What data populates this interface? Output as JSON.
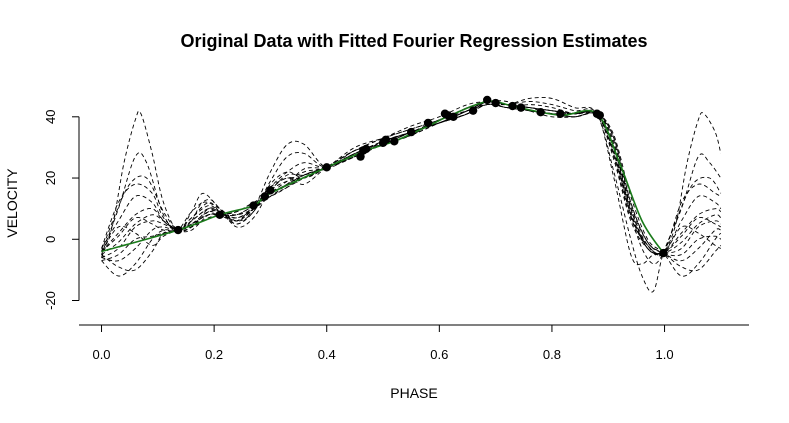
{
  "chart_data": {
    "type": "line",
    "title": "Original Data with Fitted Fourier Regression Estimates",
    "xlabel": "PHASE",
    "ylabel": "VELOCITY",
    "xlim": [
      -0.04,
      1.15
    ],
    "ylim": [
      -28,
      53
    ],
    "x_ticks": [
      0.0,
      0.2,
      0.4,
      0.6,
      0.8,
      1.0
    ],
    "x_tick_labels": [
      "0.0",
      "0.2",
      "0.4",
      "0.6",
      "0.8",
      "1.0"
    ],
    "y_ticks": [
      -20,
      0,
      20,
      40
    ],
    "y_tick_labels": [
      "-20",
      "0",
      "20",
      "40"
    ],
    "grid": false,
    "legend": "none",
    "colors": {
      "data": "#000000",
      "fits": "#000000",
      "fitted_mean": "#1a7a1a"
    },
    "observations": {
      "x": [
        0.136,
        0.21,
        0.27,
        0.29,
        0.3,
        0.4,
        0.46,
        0.465,
        0.47,
        0.5,
        0.505,
        0.52,
        0.55,
        0.58,
        0.61,
        0.615,
        0.625,
        0.66,
        0.685,
        0.7,
        0.73,
        0.745,
        0.78,
        0.815,
        0.88,
        0.885,
        0.998
      ],
      "y": [
        3,
        8,
        11,
        14,
        16,
        23.5,
        27,
        29,
        29.5,
        31.5,
        32.5,
        32,
        35,
        38,
        41,
        40.5,
        40,
        42,
        45.5,
        44.5,
        43.5,
        43,
        41.5,
        41,
        41,
        40.5,
        -4.5
      ]
    },
    "fitted_mean": {
      "x": [
        0.0,
        0.136,
        0.21,
        0.27,
        0.3,
        0.4,
        0.47,
        0.52,
        0.58,
        0.62,
        0.685,
        0.73,
        0.78,
        0.82,
        0.88,
        0.92,
        0.96,
        0.998
      ],
      "y": [
        -4,
        3,
        8,
        11,
        15,
        23.5,
        29,
        32,
        37,
        40.5,
        45,
        43.5,
        41.5,
        40.5,
        41,
        25,
        6,
        -4.5
      ]
    },
    "fourier_fits": [
      {
        "x": [
          0.0,
          0.02,
          0.04,
          0.06,
          0.07,
          0.09,
          0.11,
          0.136,
          0.16,
          0.18,
          0.21,
          0.24,
          0.27,
          0.3,
          0.33,
          0.36,
          0.4,
          0.45,
          0.5,
          0.55,
          0.6,
          0.65,
          0.685,
          0.72,
          0.76,
          0.8,
          0.84,
          0.88,
          0.91,
          0.94,
          0.96,
          0.98,
          0.998,
          1.02,
          1.04,
          1.06,
          1.07,
          1.09,
          1.1
        ],
        "y": [
          -6,
          5,
          25,
          39,
          41,
          28,
          12,
          3,
          9,
          15,
          10,
          5,
          10,
          22,
          31,
          31,
          23.5,
          28,
          31,
          35,
          38,
          41,
          45,
          44,
          46,
          46,
          43,
          41,
          20,
          -5,
          -8,
          -5,
          -4.5,
          5,
          25,
          39,
          41,
          35,
          28
        ]
      },
      {
        "x": [
          0.0,
          0.03,
          0.06,
          0.08,
          0.11,
          0.136,
          0.16,
          0.18,
          0.21,
          0.24,
          0.27,
          0.3,
          0.33,
          0.36,
          0.4,
          0.45,
          0.5,
          0.55,
          0.6,
          0.65,
          0.685,
          0.72,
          0.76,
          0.8,
          0.84,
          0.88,
          0.91,
          0.94,
          0.96,
          0.98,
          0.998,
          1.03,
          1.06,
          1.08,
          1.1
        ],
        "y": [
          -5,
          10,
          27,
          25,
          8,
          3,
          6,
          12,
          10,
          6,
          9,
          19,
          27,
          28,
          23.5,
          29,
          31,
          34,
          39,
          42,
          44,
          44,
          45,
          44,
          42,
          41,
          22,
          0,
          -12,
          -17,
          -4.5,
          10,
          27,
          25,
          20
        ]
      },
      {
        "x": [
          0.0,
          0.02,
          0.05,
          0.08,
          0.11,
          0.136,
          0.16,
          0.19,
          0.21,
          0.24,
          0.27,
          0.3,
          0.33,
          0.36,
          0.4,
          0.45,
          0.5,
          0.55,
          0.6,
          0.65,
          0.685,
          0.72,
          0.76,
          0.8,
          0.84,
          0.88,
          0.91,
          0.94,
          0.96,
          0.98,
          0.998,
          1.02,
          1.05,
          1.08,
          1.1
        ],
        "y": [
          -4,
          6,
          18,
          20,
          9,
          3,
          4,
          10,
          9,
          6,
          10,
          17,
          22,
          25,
          23.5,
          27,
          32,
          35,
          38,
          42,
          45,
          43,
          44,
          43,
          41,
          40.5,
          28,
          8,
          -3,
          -8,
          -4.5,
          6,
          18,
          20,
          15
        ]
      },
      {
        "x": [
          0.0,
          0.03,
          0.06,
          0.09,
          0.11,
          0.136,
          0.16,
          0.19,
          0.21,
          0.24,
          0.27,
          0.3,
          0.33,
          0.36,
          0.4,
          0.45,
          0.5,
          0.55,
          0.6,
          0.65,
          0.685,
          0.72,
          0.76,
          0.8,
          0.84,
          0.88,
          0.91,
          0.94,
          0.97,
          0.998,
          1.03,
          1.06,
          1.09,
          1.1
        ],
        "y": [
          -3,
          12,
          18,
          15,
          7,
          3,
          3,
          8,
          8,
          7,
          10,
          15,
          19,
          22,
          23.5,
          28,
          31,
          35,
          38,
          41,
          45,
          44,
          43,
          42,
          41,
          41,
          30,
          10,
          -2,
          -4.5,
          12,
          18,
          15,
          14
        ]
      },
      {
        "x": [
          0.0,
          0.03,
          0.06,
          0.09,
          0.11,
          0.136,
          0.16,
          0.19,
          0.21,
          0.24,
          0.27,
          0.3,
          0.33,
          0.36,
          0.4,
          0.45,
          0.5,
          0.55,
          0.6,
          0.65,
          0.685,
          0.72,
          0.76,
          0.8,
          0.84,
          0.88,
          0.91,
          0.94,
          0.97,
          0.998,
          1.03,
          1.06,
          1.09,
          1.1
        ],
        "y": [
          -7,
          -12,
          -8,
          0,
          3,
          3,
          7,
          12,
          9,
          5,
          9,
          18,
          22,
          20,
          23.5,
          30,
          33,
          36,
          39,
          43,
          45,
          44,
          42,
          41,
          40,
          41,
          34,
          14,
          0,
          -4.5,
          -12,
          -8,
          0,
          2
        ]
      },
      {
        "x": [
          0.0,
          0.03,
          0.06,
          0.09,
          0.11,
          0.136,
          0.16,
          0.19,
          0.21,
          0.24,
          0.27,
          0.3,
          0.33,
          0.36,
          0.4,
          0.45,
          0.5,
          0.55,
          0.6,
          0.65,
          0.685,
          0.72,
          0.76,
          0.8,
          0.84,
          0.88,
          0.91,
          0.94,
          0.97,
          0.998,
          1.03,
          1.06,
          1.09,
          1.1
        ],
        "y": [
          -5,
          -9,
          -10,
          -4,
          2,
          3,
          9,
          13,
          10,
          4,
          7,
          16,
          20,
          18,
          23.5,
          29,
          33,
          37,
          40,
          44,
          45,
          45,
          42,
          40,
          40,
          41,
          33,
          12,
          -1,
          -4.5,
          -9,
          -10,
          -4,
          -2
        ]
      },
      {
        "x": [
          0.0,
          0.03,
          0.06,
          0.09,
          0.11,
          0.136,
          0.16,
          0.19,
          0.21,
          0.24,
          0.27,
          0.3,
          0.33,
          0.36,
          0.4,
          0.45,
          0.5,
          0.55,
          0.6,
          0.65,
          0.685,
          0.72,
          0.76,
          0.8,
          0.84,
          0.88,
          0.91,
          0.94,
          0.97,
          0.998,
          1.03,
          1.06,
          1.09,
          1.1
        ],
        "y": [
          -4,
          2,
          8,
          10,
          6,
          3,
          5,
          9,
          8,
          8,
          11,
          14,
          17,
          20,
          23.5,
          27,
          32,
          35,
          38,
          42,
          44,
          43,
          42,
          41,
          41,
          41,
          29,
          8,
          -3,
          -4.5,
          2,
          8,
          10,
          9
        ]
      },
      {
        "x": [
          0.0,
          0.03,
          0.06,
          0.09,
          0.11,
          0.136,
          0.16,
          0.19,
          0.21,
          0.24,
          0.27,
          0.3,
          0.33,
          0.36,
          0.4,
          0.45,
          0.5,
          0.55,
          0.6,
          0.65,
          0.685,
          0.72,
          0.76,
          0.8,
          0.84,
          0.88,
          0.91,
          0.94,
          0.97,
          0.998,
          1.03,
          1.06,
          1.09,
          1.1
        ],
        "y": [
          -6,
          -3,
          4,
          6,
          5,
          3,
          6,
          10,
          8,
          6,
          11,
          17,
          20,
          20,
          23.5,
          29,
          31,
          34,
          38,
          42,
          45,
          44,
          43,
          42,
          41,
          41,
          31,
          10,
          -3,
          -4.5,
          -3,
          4,
          6,
          5
        ]
      },
      {
        "x": [
          0.0,
          0.03,
          0.06,
          0.09,
          0.11,
          0.136,
          0.16,
          0.19,
          0.21,
          0.24,
          0.27,
          0.3,
          0.33,
          0.36,
          0.4,
          0.45,
          0.5,
          0.55,
          0.6,
          0.65,
          0.685,
          0.72,
          0.76,
          0.8,
          0.84,
          0.88,
          0.91,
          0.94,
          0.97,
          0.998,
          1.03,
          1.06,
          1.09,
          1.1
        ],
        "y": [
          -3,
          6,
          14,
          12,
          6,
          3,
          4,
          9,
          9,
          8,
          10,
          14,
          18,
          23,
          23.5,
          27,
          31,
          35,
          38,
          41,
          45,
          44,
          43,
          42,
          41,
          41,
          27,
          7,
          -2,
          -4.5,
          6,
          14,
          12,
          10
        ]
      },
      {
        "x": [
          0.0,
          0.03,
          0.06,
          0.09,
          0.11,
          0.136,
          0.16,
          0.19,
          0.21,
          0.24,
          0.27,
          0.3,
          0.33,
          0.36,
          0.4,
          0.45,
          0.5,
          0.55,
          0.6,
          0.65,
          0.685,
          0.72,
          0.76,
          0.8,
          0.84,
          0.88,
          0.91,
          0.94,
          0.97,
          0.998,
          1.03,
          1.06,
          1.09,
          1.1
        ],
        "y": [
          -5,
          -1,
          5,
          8,
          6,
          3,
          5,
          8,
          8,
          8,
          11,
          15,
          18,
          21,
          23.5,
          28,
          32,
          35,
          38,
          42,
          45,
          44,
          43,
          42,
          41,
          41,
          30,
          9,
          -3,
          -4.5,
          -1,
          5,
          8,
          7
        ]
      },
      {
        "x": [
          0.0,
          0.03,
          0.06,
          0.09,
          0.11,
          0.136,
          0.16,
          0.19,
          0.21,
          0.24,
          0.27,
          0.3,
          0.33,
          0.36,
          0.4,
          0.45,
          0.5,
          0.55,
          0.6,
          0.65,
          0.685,
          0.72,
          0.76,
          0.8,
          0.84,
          0.88,
          0.91,
          0.94,
          0.97,
          0.998,
          1.03,
          1.06,
          1.09,
          1.1
        ],
        "y": [
          -6,
          -7,
          -3,
          3,
          4,
          3,
          7,
          11,
          9,
          6,
          10,
          16,
          19,
          20,
          23.5,
          29,
          33,
          36,
          39,
          43,
          45,
          44,
          42,
          41,
          40,
          41,
          32,
          11,
          -1,
          -4.5,
          -7,
          -3,
          3,
          3
        ]
      },
      {
        "x": [
          0.0,
          0.03,
          0.06,
          0.09,
          0.11,
          0.136,
          0.16,
          0.19,
          0.21,
          0.24,
          0.27,
          0.3,
          0.33,
          0.36,
          0.4,
          0.45,
          0.5,
          0.55,
          0.6,
          0.65,
          0.685,
          0.72,
          0.76,
          0.8,
          0.84,
          0.88,
          0.91,
          0.94,
          0.97,
          0.998,
          1.03,
          1.06,
          1.09,
          1.1
        ],
        "y": [
          -4,
          4,
          2,
          -2,
          1,
          3,
          4,
          7,
          8,
          9,
          12,
          15,
          18,
          21,
          23.5,
          27,
          31,
          35,
          38,
          41,
          44,
          43,
          42,
          41,
          41,
          41,
          28,
          8,
          -2,
          -4.5,
          4,
          2,
          -2,
          -3
        ]
      },
      {
        "x": [
          0.0,
          0.03,
          0.06,
          0.09,
          0.11,
          0.136,
          0.16,
          0.19,
          0.21,
          0.24,
          0.27,
          0.3,
          0.33,
          0.36,
          0.4,
          0.45,
          0.5,
          0.55,
          0.6,
          0.65,
          0.685,
          0.72,
          0.76,
          0.8,
          0.84,
          0.88,
          0.91,
          0.94,
          0.97,
          0.998,
          1.03,
          1.06,
          1.09,
          1.1
        ],
        "y": [
          -4,
          1,
          7,
          5,
          3,
          3,
          5,
          8,
          8,
          9,
          12,
          14,
          17,
          21,
          23.5,
          27,
          31,
          34,
          38,
          41,
          44,
          43,
          42,
          41,
          41,
          41,
          26,
          6,
          -3,
          -4.5,
          1,
          7,
          5,
          4
        ]
      },
      {
        "x": [
          0.0,
          0.03,
          0.06,
          0.09,
          0.11,
          0.136,
          0.16,
          0.19,
          0.21,
          0.24,
          0.27,
          0.3,
          0.33,
          0.36,
          0.4,
          0.45,
          0.5,
          0.55,
          0.6,
          0.65,
          0.685,
          0.72,
          0.76,
          0.8,
          0.84,
          0.88,
          0.91,
          0.94,
          0.97,
          0.998,
          1.03,
          1.06,
          1.09,
          1.1
        ],
        "y": [
          -7,
          -5,
          0,
          1,
          2,
          3,
          6,
          10,
          9,
          7,
          10,
          16,
          21,
          21,
          23.5,
          28,
          32,
          35,
          39,
          42,
          45,
          44,
          43,
          41,
          40,
          41,
          33,
          12,
          -1,
          -4.5,
          -5,
          0,
          1,
          0
        ]
      }
    ]
  }
}
